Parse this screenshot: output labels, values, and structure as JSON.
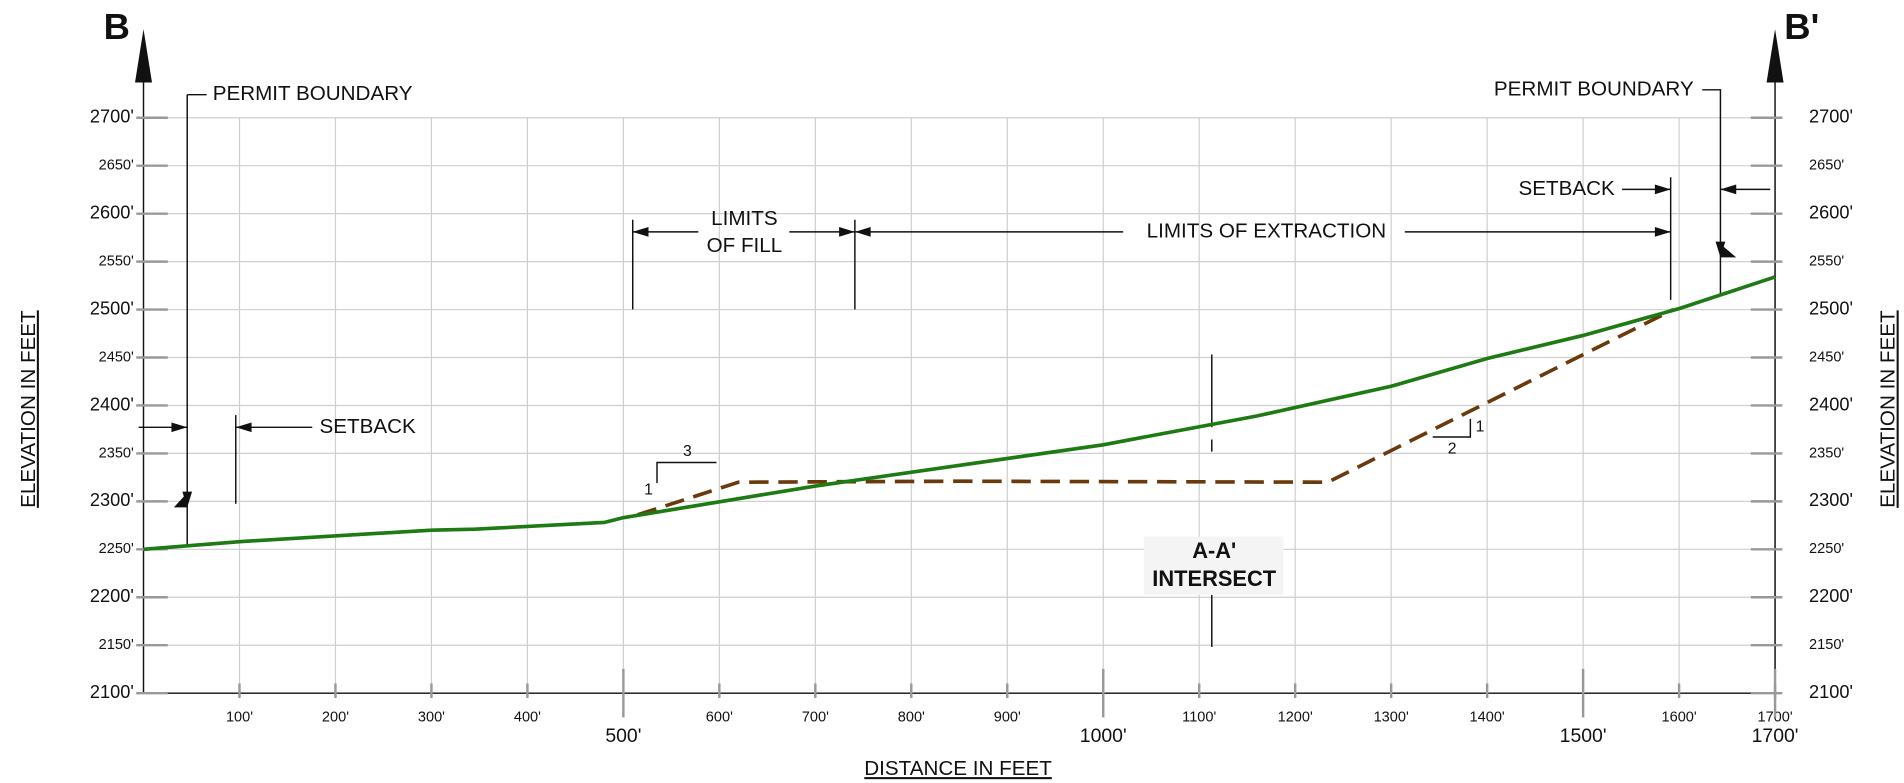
{
  "chart_data": {
    "type": "line",
    "x_label": "DISTANCE IN FEET",
    "y_label": "ELEVATION IN FEET",
    "annotations": {
      "b": "B",
      "b_prime": "B'",
      "permit_left": "PERMIT BOUNDARY",
      "permit_right": "PERMIT BOUNDARY",
      "setback_left": "SETBACK",
      "setback_right": "SETBACK",
      "fill_1": "LIMITS",
      "fill_2": "OF FILL",
      "extraction": "LIMITS OF EXTRACTION",
      "intersect_1": "A-A'",
      "intersect_2": "INTERSECT",
      "slope_fill_rise": "1",
      "slope_fill_run": "3",
      "slope_cut_rise": "1",
      "slope_cut_run": "2"
    },
    "series": [
      {
        "color": "#1e7a12",
        "dash": false,
        "x": [
          0,
          100,
          300,
          345,
          480,
          500,
          700,
          1000,
          1160,
          1300,
          1400,
          1500,
          1600,
          1700
        ],
        "values": [
          2250,
          2258,
          2270,
          2271,
          2278,
          2283,
          2316,
          2359,
          2389,
          2420,
          2449,
          2473,
          2501,
          2534
        ]
      },
      {
        "color": "#6b3a0c",
        "dash": true,
        "x": [
          515,
          620,
          850,
          1234,
          1594
        ],
        "values": [
          2286,
          2320,
          2321,
          2320,
          2500
        ]
      }
    ],
    "xlim": [
      0,
      1700
    ],
    "ylim": [
      2100,
      2700
    ],
    "grid": true,
    "xticks": [
      {
        "value": 100,
        "label": "100'"
      },
      {
        "value": 200,
        "label": "200'"
      },
      {
        "value": 300,
        "label": "300'"
      },
      {
        "value": 400,
        "label": "400'"
      },
      {
        "value": 600,
        "label": "600'"
      },
      {
        "value": 700,
        "label": "700'"
      },
      {
        "value": 800,
        "label": "800'"
      },
      {
        "value": 900,
        "label": "900'"
      },
      {
        "value": 1100,
        "label": "1100'"
      },
      {
        "value": 1200,
        "label": "1200'"
      },
      {
        "value": 1300,
        "label": "1300'"
      },
      {
        "value": 1400,
        "label": "1400'"
      },
      {
        "value": 1600,
        "label": "1600'"
      },
      {
        "value": 1700,
        "label": "1700'"
      }
    ],
    "xticks_major": [
      {
        "value": 500,
        "label": "500'"
      },
      {
        "value": 1000,
        "label": "1000'"
      },
      {
        "value": 1500,
        "label": "1500'"
      },
      {
        "value": 1700,
        "label": "1700'"
      }
    ],
    "yticks": [
      {
        "value": 2100,
        "label": "2100'"
      },
      {
        "value": 2150,
        "label": "2150'"
      },
      {
        "value": 2200,
        "label": "2200'"
      },
      {
        "value": 2250,
        "label": "2250'"
      },
      {
        "value": 2300,
        "label": "2300'"
      },
      {
        "value": 2350,
        "label": "2350'"
      },
      {
        "value": 2400,
        "label": "2400'"
      },
      {
        "value": 2450,
        "label": "2450'"
      },
      {
        "value": 2500,
        "label": "2500'"
      },
      {
        "value": 2550,
        "label": "2550'"
      },
      {
        "value": 2600,
        "label": "2600'"
      },
      {
        "value": 2650,
        "label": "2650'"
      },
      {
        "value": 2700,
        "label": "2700'"
      }
    ]
  }
}
